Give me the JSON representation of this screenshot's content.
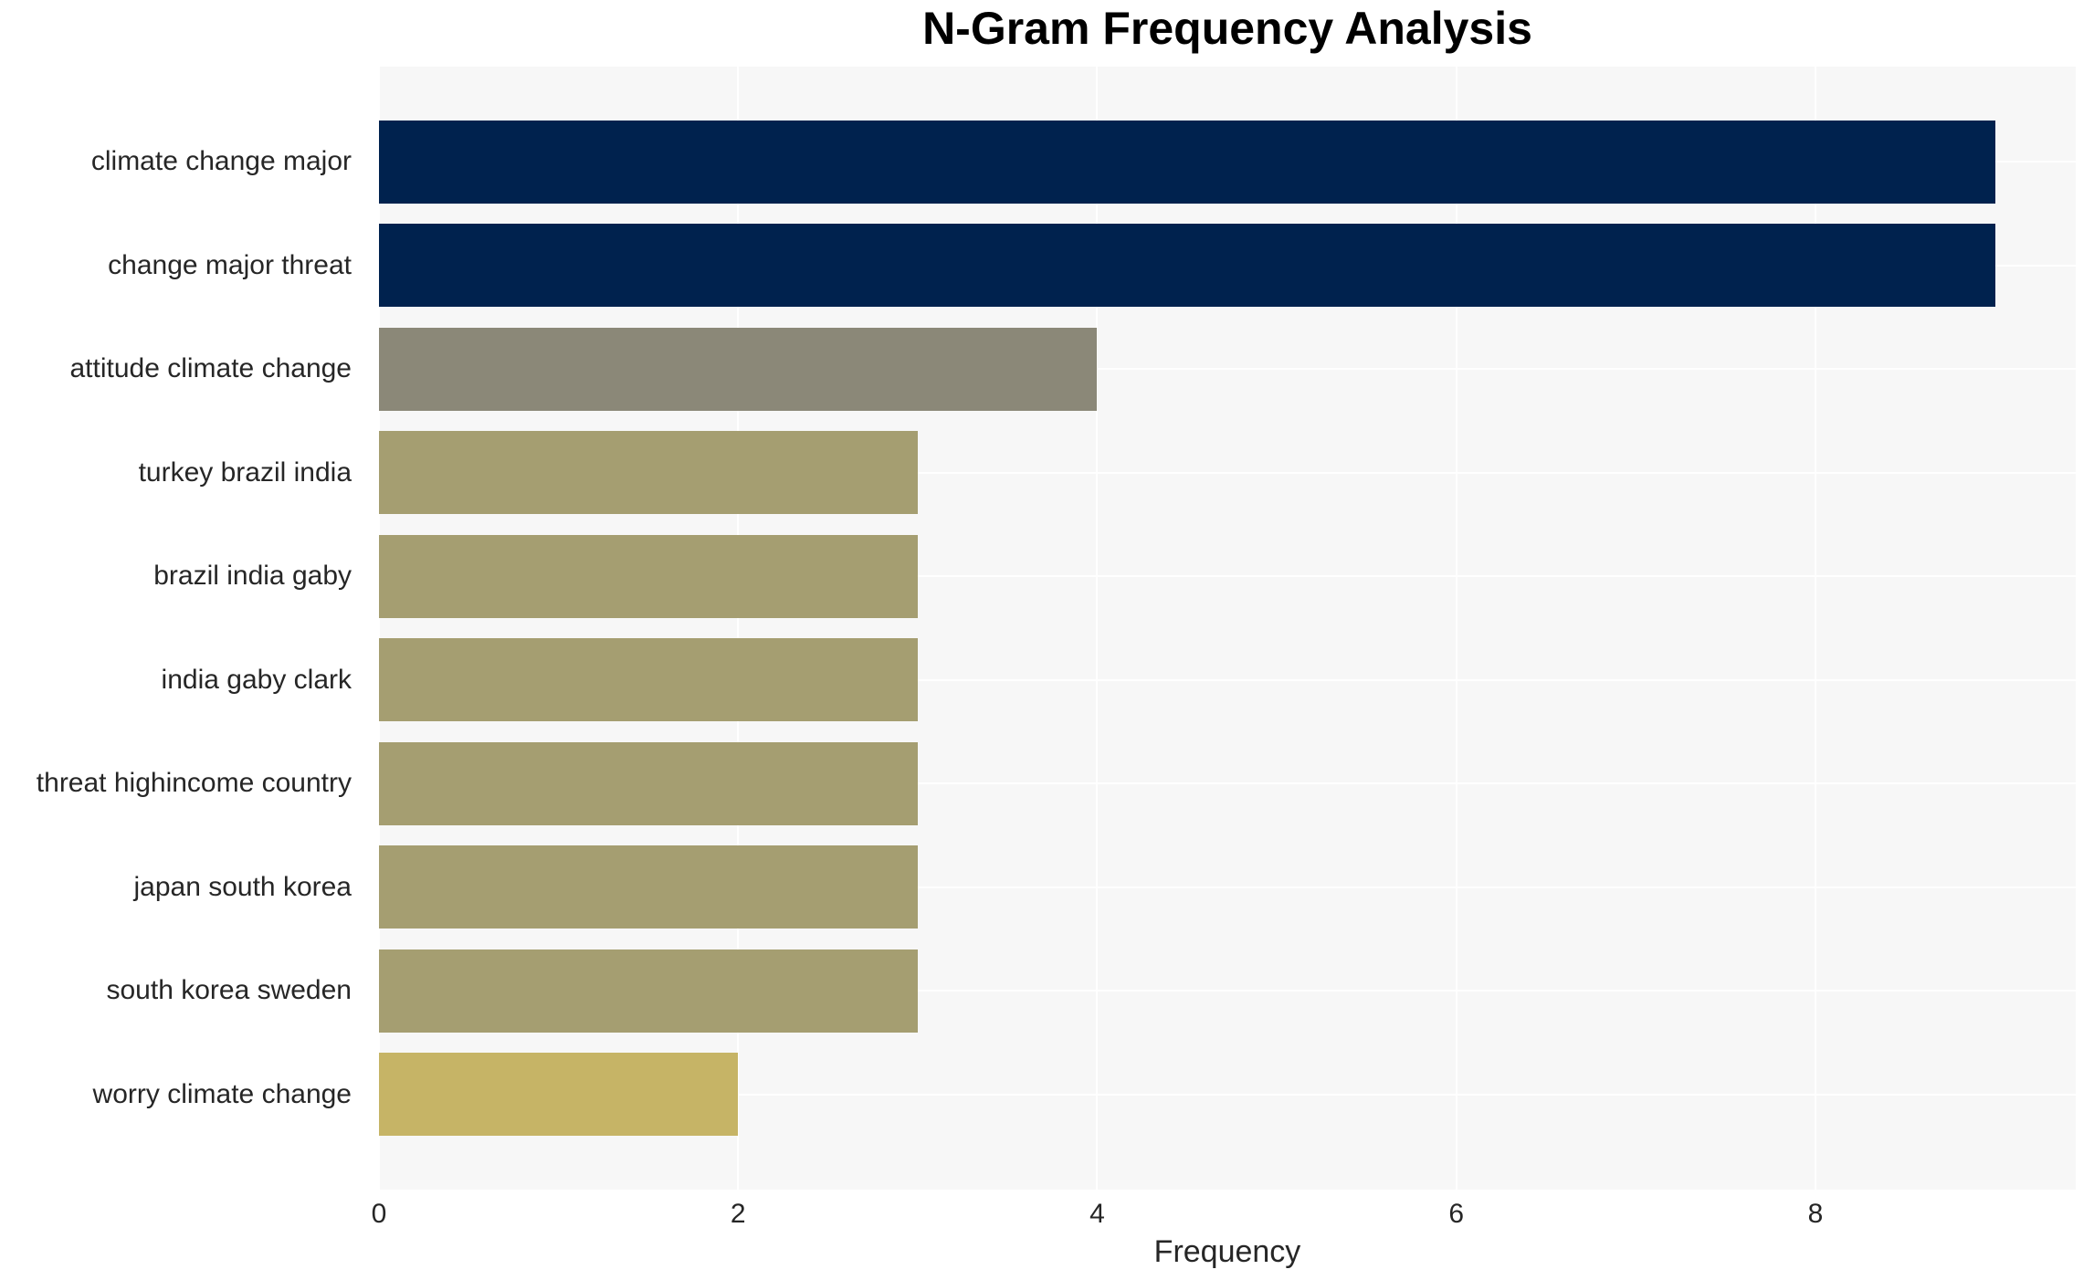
{
  "chart_data": {
    "type": "bar",
    "orientation": "horizontal",
    "title": "N-Gram Frequency Analysis",
    "xlabel": "Frequency",
    "ylabel": "",
    "categories": [
      "climate change major",
      "change major threat",
      "attitude climate change",
      "turkey brazil india",
      "brazil india gaby",
      "india gaby clark",
      "threat highincome country",
      "japan south korea",
      "south korea sweden",
      "worry climate change"
    ],
    "values": [
      9,
      9,
      4,
      3,
      3,
      3,
      3,
      3,
      3,
      2
    ],
    "bar_colors": [
      "#00224e",
      "#00224e",
      "#8b8878",
      "#a59e71",
      "#a59e71",
      "#a59e71",
      "#a59e71",
      "#a59e71",
      "#a59e71",
      "#c6b466"
    ],
    "xticks": [
      0,
      2,
      4,
      6,
      8
    ],
    "xlim": [
      0,
      9.45
    ],
    "grid": true,
    "legend": "none",
    "plot_bg_color": "#f7f7f7",
    "grid_color": "#ffffff",
    "text_color": "#262626"
  }
}
